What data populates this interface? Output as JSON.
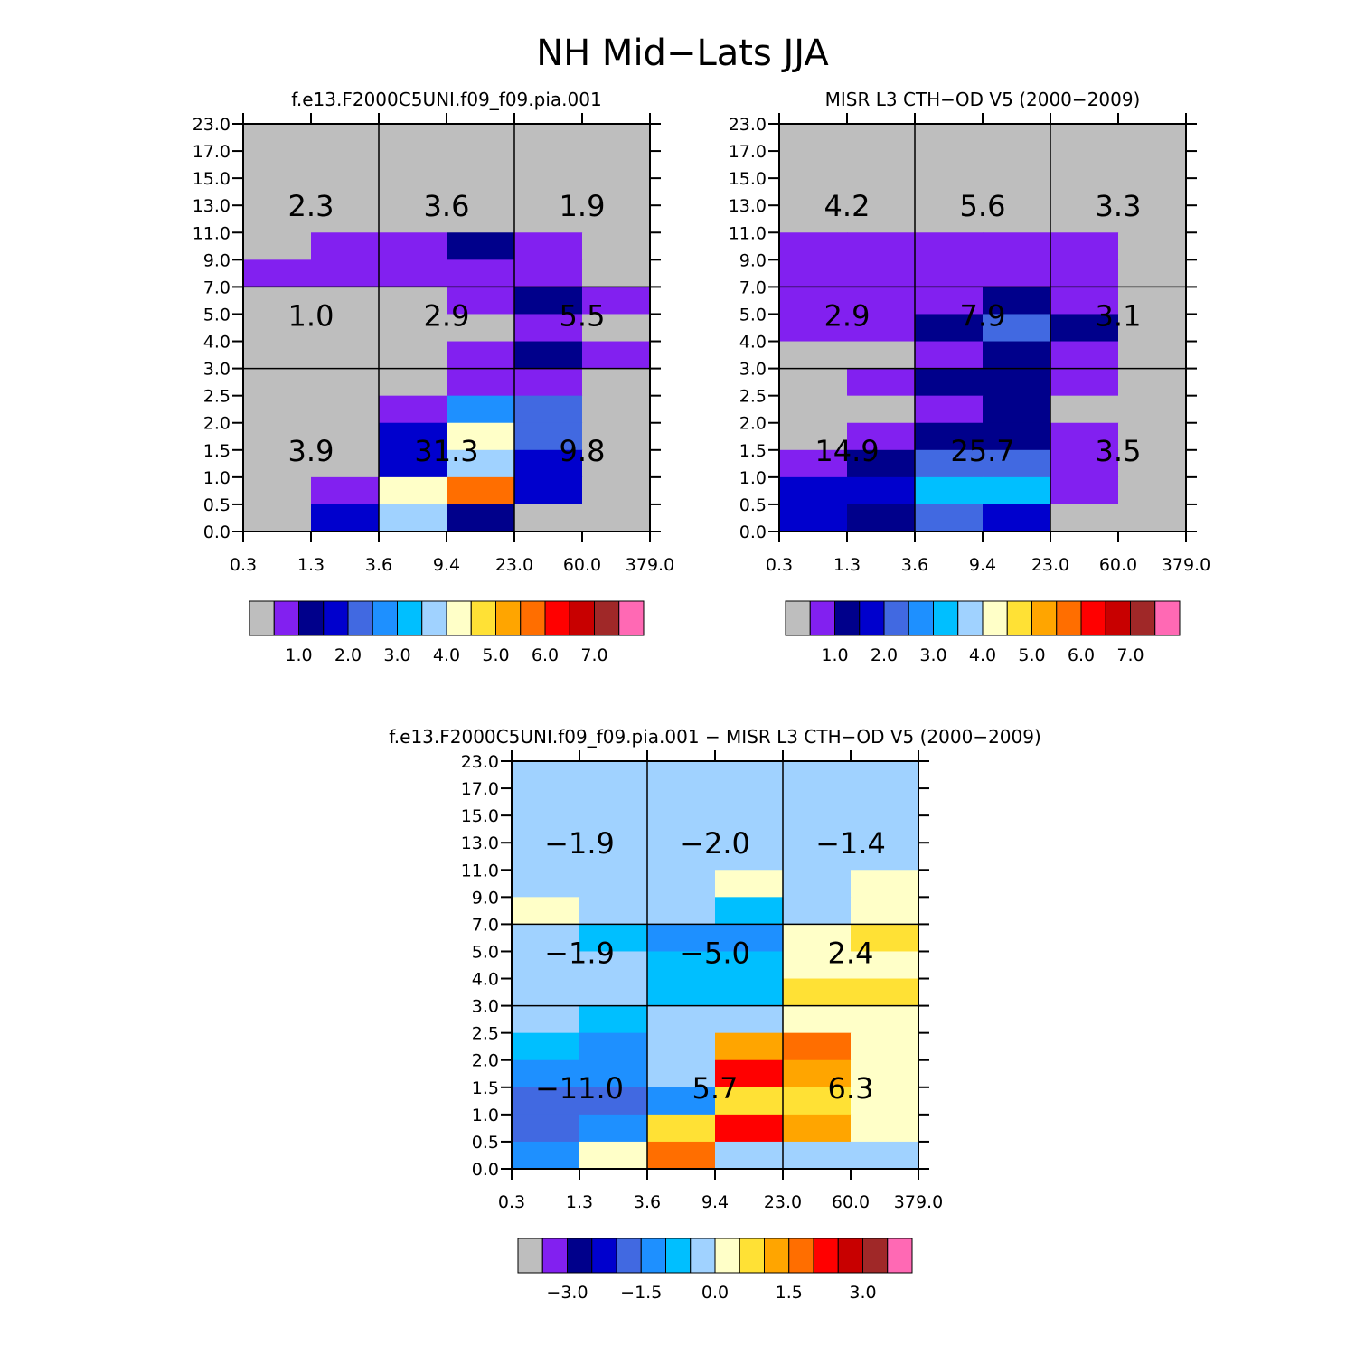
{
  "figure": {
    "title": "NH Mid−Lats JJA"
  },
  "palette": {
    "gray": "#bebebe",
    "purple": "#8220f0",
    "darknavy": "#00008b",
    "navy": "#0000cd",
    "royalblue": "#4169e1",
    "dodger": "#1e90ff",
    "deepsky": "#00bfff",
    "lightsky": "#a0d2ff",
    "cream": "#ffffc8",
    "gold": "#ffe135",
    "orange": "#ffa500",
    "darkorange": "#ff6e00",
    "red": "#ff0000",
    "crimson": "#c80000",
    "brown": "#a02828",
    "pink": "#ff69b4"
  },
  "axes": {
    "x_ticks": [
      "0.3",
      "1.3",
      "3.6",
      "9.4",
      "23.0",
      "60.0",
      "379.0"
    ],
    "y_ticks": [
      "0.0",
      "0.5",
      "1.0",
      "1.5",
      "2.0",
      "2.5",
      "3.0",
      "4.0",
      "5.0",
      "7.0",
      "9.0",
      "11.0",
      "13.0",
      "15.0",
      "17.0",
      "23.0"
    ]
  },
  "chart_data": [
    {
      "type": "heatmap",
      "title": "f.e13.F2000C5UNI.f09_f09.pia.001",
      "xlabel": "",
      "ylabel": "",
      "x_bin_edges": [
        "0.3",
        "1.3",
        "3.6",
        "9.4",
        "23.0",
        "60.0",
        "379.0"
      ],
      "y_bin_edges": [
        "0.0",
        "0.5",
        "1.0",
        "1.5",
        "2.0",
        "2.5",
        "3.0",
        "4.0",
        "5.0",
        "7.0",
        "9.0",
        "11.0",
        "13.0",
        "15.0",
        "17.0",
        "23.0"
      ],
      "cells_note": "rows listed from highest altitude bin (17.0-23.0) to lowest (0.0-0.5); values are colorbar class indices 0..15",
      "cells": [
        [
          0,
          0,
          0,
          0,
          0,
          0
        ],
        [
          0,
          0,
          0,
          0,
          0,
          0
        ],
        [
          0,
          0,
          0,
          0,
          0,
          0
        ],
        [
          0,
          1,
          1,
          2,
          1,
          0
        ],
        [
          1,
          1,
          1,
          1,
          1,
          0
        ],
        [
          0,
          0,
          0,
          1,
          2,
          1
        ],
        [
          0,
          0,
          0,
          0,
          1,
          0
        ],
        [
          0,
          0,
          0,
          1,
          2,
          1
        ],
        [
          0,
          0,
          0,
          1,
          1,
          0
        ],
        [
          0,
          0,
          1,
          5,
          4,
          0
        ],
        [
          0,
          0,
          3,
          8,
          4,
          0
        ],
        [
          0,
          0,
          3,
          7,
          3,
          0
        ],
        [
          0,
          1,
          8,
          11,
          3,
          0
        ],
        [
          0,
          3,
          7,
          2,
          0,
          0
        ]
      ],
      "region_labels": [
        {
          "text": "2.3",
          "col": 0,
          "level": "high"
        },
        {
          "text": "3.6",
          "col": 1,
          "level": "high"
        },
        {
          "text": "1.9",
          "col": 2,
          "level": "high"
        },
        {
          "text": "1.0",
          "col": 0,
          "level": "mid"
        },
        {
          "text": "2.9",
          "col": 1,
          "level": "mid"
        },
        {
          "text": "5.5",
          "col": 2,
          "level": "mid"
        },
        {
          "text": "3.9",
          "col": 0,
          "level": "low"
        },
        {
          "text": "31.3",
          "col": 1,
          "level": "low"
        },
        {
          "text": "9.8",
          "col": 2,
          "level": "low"
        }
      ],
      "colorbar": {
        "colors": [
          "gray",
          "purple",
          "darknavy",
          "navy",
          "royalblue",
          "dodger",
          "deepsky",
          "lightsky",
          "cream",
          "gold",
          "orange",
          "darkorange",
          "red",
          "crimson",
          "brown",
          "pink"
        ],
        "labels": [
          "1.0",
          "2.0",
          "3.0",
          "4.0",
          "5.0",
          "6.0",
          "7.0"
        ],
        "label_boundaries": [
          2,
          4,
          6,
          8,
          10,
          12,
          14
        ]
      }
    },
    {
      "type": "heatmap",
      "title": "MISR L3 CTH−OD V5 (2000−2009)",
      "xlabel": "",
      "ylabel": "",
      "x_bin_edges": [
        "0.3",
        "1.3",
        "3.6",
        "9.4",
        "23.0",
        "60.0",
        "379.0"
      ],
      "y_bin_edges": [
        "0.0",
        "0.5",
        "1.0",
        "1.5",
        "2.0",
        "2.5",
        "3.0",
        "4.0",
        "5.0",
        "7.0",
        "9.0",
        "11.0",
        "13.0",
        "15.0",
        "17.0",
        "23.0"
      ],
      "cells": [
        [
          0,
          0,
          0,
          0,
          0,
          0
        ],
        [
          0,
          0,
          0,
          0,
          0,
          0
        ],
        [
          0,
          0,
          0,
          0,
          0,
          0
        ],
        [
          1,
          1,
          1,
          1,
          1,
          0
        ],
        [
          1,
          1,
          1,
          1,
          1,
          0
        ],
        [
          1,
          1,
          1,
          2,
          1,
          0
        ],
        [
          1,
          1,
          2,
          4,
          2,
          0
        ],
        [
          0,
          0,
          1,
          2,
          1,
          0
        ],
        [
          0,
          1,
          2,
          2,
          1,
          0
        ],
        [
          0,
          0,
          1,
          2,
          0,
          0
        ],
        [
          0,
          1,
          2,
          2,
          1,
          0
        ],
        [
          1,
          2,
          4,
          4,
          1,
          0
        ],
        [
          3,
          3,
          6,
          6,
          1,
          0
        ],
        [
          3,
          2,
          4,
          3,
          0,
          0
        ]
      ],
      "region_labels": [
        {
          "text": "4.2",
          "col": 0,
          "level": "high"
        },
        {
          "text": "5.6",
          "col": 1,
          "level": "high"
        },
        {
          "text": "3.3",
          "col": 2,
          "level": "high"
        },
        {
          "text": "2.9",
          "col": 0,
          "level": "mid"
        },
        {
          "text": "7.9",
          "col": 1,
          "level": "mid"
        },
        {
          "text": "3.1",
          "col": 2,
          "level": "mid"
        },
        {
          "text": "14.9",
          "col": 0,
          "level": "low"
        },
        {
          "text": "25.7",
          "col": 1,
          "level": "low"
        },
        {
          "text": "3.5",
          "col": 2,
          "level": "low"
        }
      ],
      "colorbar": {
        "colors": [
          "gray",
          "purple",
          "darknavy",
          "navy",
          "royalblue",
          "dodger",
          "deepsky",
          "lightsky",
          "cream",
          "gold",
          "orange",
          "darkorange",
          "red",
          "crimson",
          "brown",
          "pink"
        ],
        "labels": [
          "1.0",
          "2.0",
          "3.0",
          "4.0",
          "5.0",
          "6.0",
          "7.0"
        ],
        "label_boundaries": [
          2,
          4,
          6,
          8,
          10,
          12,
          14
        ]
      }
    },
    {
      "type": "heatmap",
      "title": "f.e13.F2000C5UNI.f09_f09.pia.001 − MISR L3 CTH−OD V5 (2000−2009)",
      "xlabel": "",
      "ylabel": "",
      "x_bin_edges": [
        "0.3",
        "1.3",
        "3.6",
        "9.4",
        "23.0",
        "60.0",
        "379.0"
      ],
      "y_bin_edges": [
        "0.0",
        "0.5",
        "1.0",
        "1.5",
        "2.0",
        "2.5",
        "3.0",
        "4.0",
        "5.0",
        "7.0",
        "9.0",
        "11.0",
        "13.0",
        "15.0",
        "17.0",
        "23.0"
      ],
      "cells": [
        [
          7,
          7,
          7,
          7,
          7,
          7
        ],
        [
          7,
          7,
          7,
          7,
          7,
          7
        ],
        [
          7,
          7,
          7,
          7,
          7,
          7
        ],
        [
          7,
          7,
          7,
          8,
          7,
          8
        ],
        [
          8,
          7,
          7,
          6,
          7,
          8
        ],
        [
          7,
          6,
          5,
          5,
          8,
          9
        ],
        [
          7,
          7,
          6,
          6,
          8,
          8
        ],
        [
          7,
          7,
          6,
          6,
          9,
          9
        ],
        [
          7,
          6,
          7,
          7,
          8,
          8
        ],
        [
          6,
          5,
          7,
          10,
          11,
          8
        ],
        [
          5,
          5,
          7,
          12,
          10,
          8
        ],
        [
          4,
          4,
          5,
          9,
          9,
          8
        ],
        [
          4,
          5,
          9,
          12,
          10,
          8
        ],
        [
          5,
          8,
          11,
          7,
          7,
          7
        ]
      ],
      "region_labels": [
        {
          "text": "−1.9",
          "col": 0,
          "level": "high"
        },
        {
          "text": "−2.0",
          "col": 1,
          "level": "high"
        },
        {
          "text": "−1.4",
          "col": 2,
          "level": "high"
        },
        {
          "text": "−1.9",
          "col": 0,
          "level": "mid"
        },
        {
          "text": "−5.0",
          "col": 1,
          "level": "mid"
        },
        {
          "text": "2.4",
          "col": 2,
          "level": "mid"
        },
        {
          "text": "−11.0",
          "col": 0,
          "level": "low"
        },
        {
          "text": "5.7",
          "col": 1,
          "level": "low"
        },
        {
          "text": "6.3",
          "col": 2,
          "level": "low"
        }
      ],
      "colorbar": {
        "colors": [
          "gray",
          "purple",
          "darknavy",
          "navy",
          "royalblue",
          "dodger",
          "deepsky",
          "lightsky",
          "cream",
          "gold",
          "orange",
          "darkorange",
          "red",
          "crimson",
          "brown",
          "pink"
        ],
        "labels": [
          "−3.0",
          "−1.5",
          "0.0",
          "1.5",
          "3.0"
        ],
        "label_boundaries": [
          2,
          5,
          8,
          11,
          14
        ]
      }
    }
  ]
}
